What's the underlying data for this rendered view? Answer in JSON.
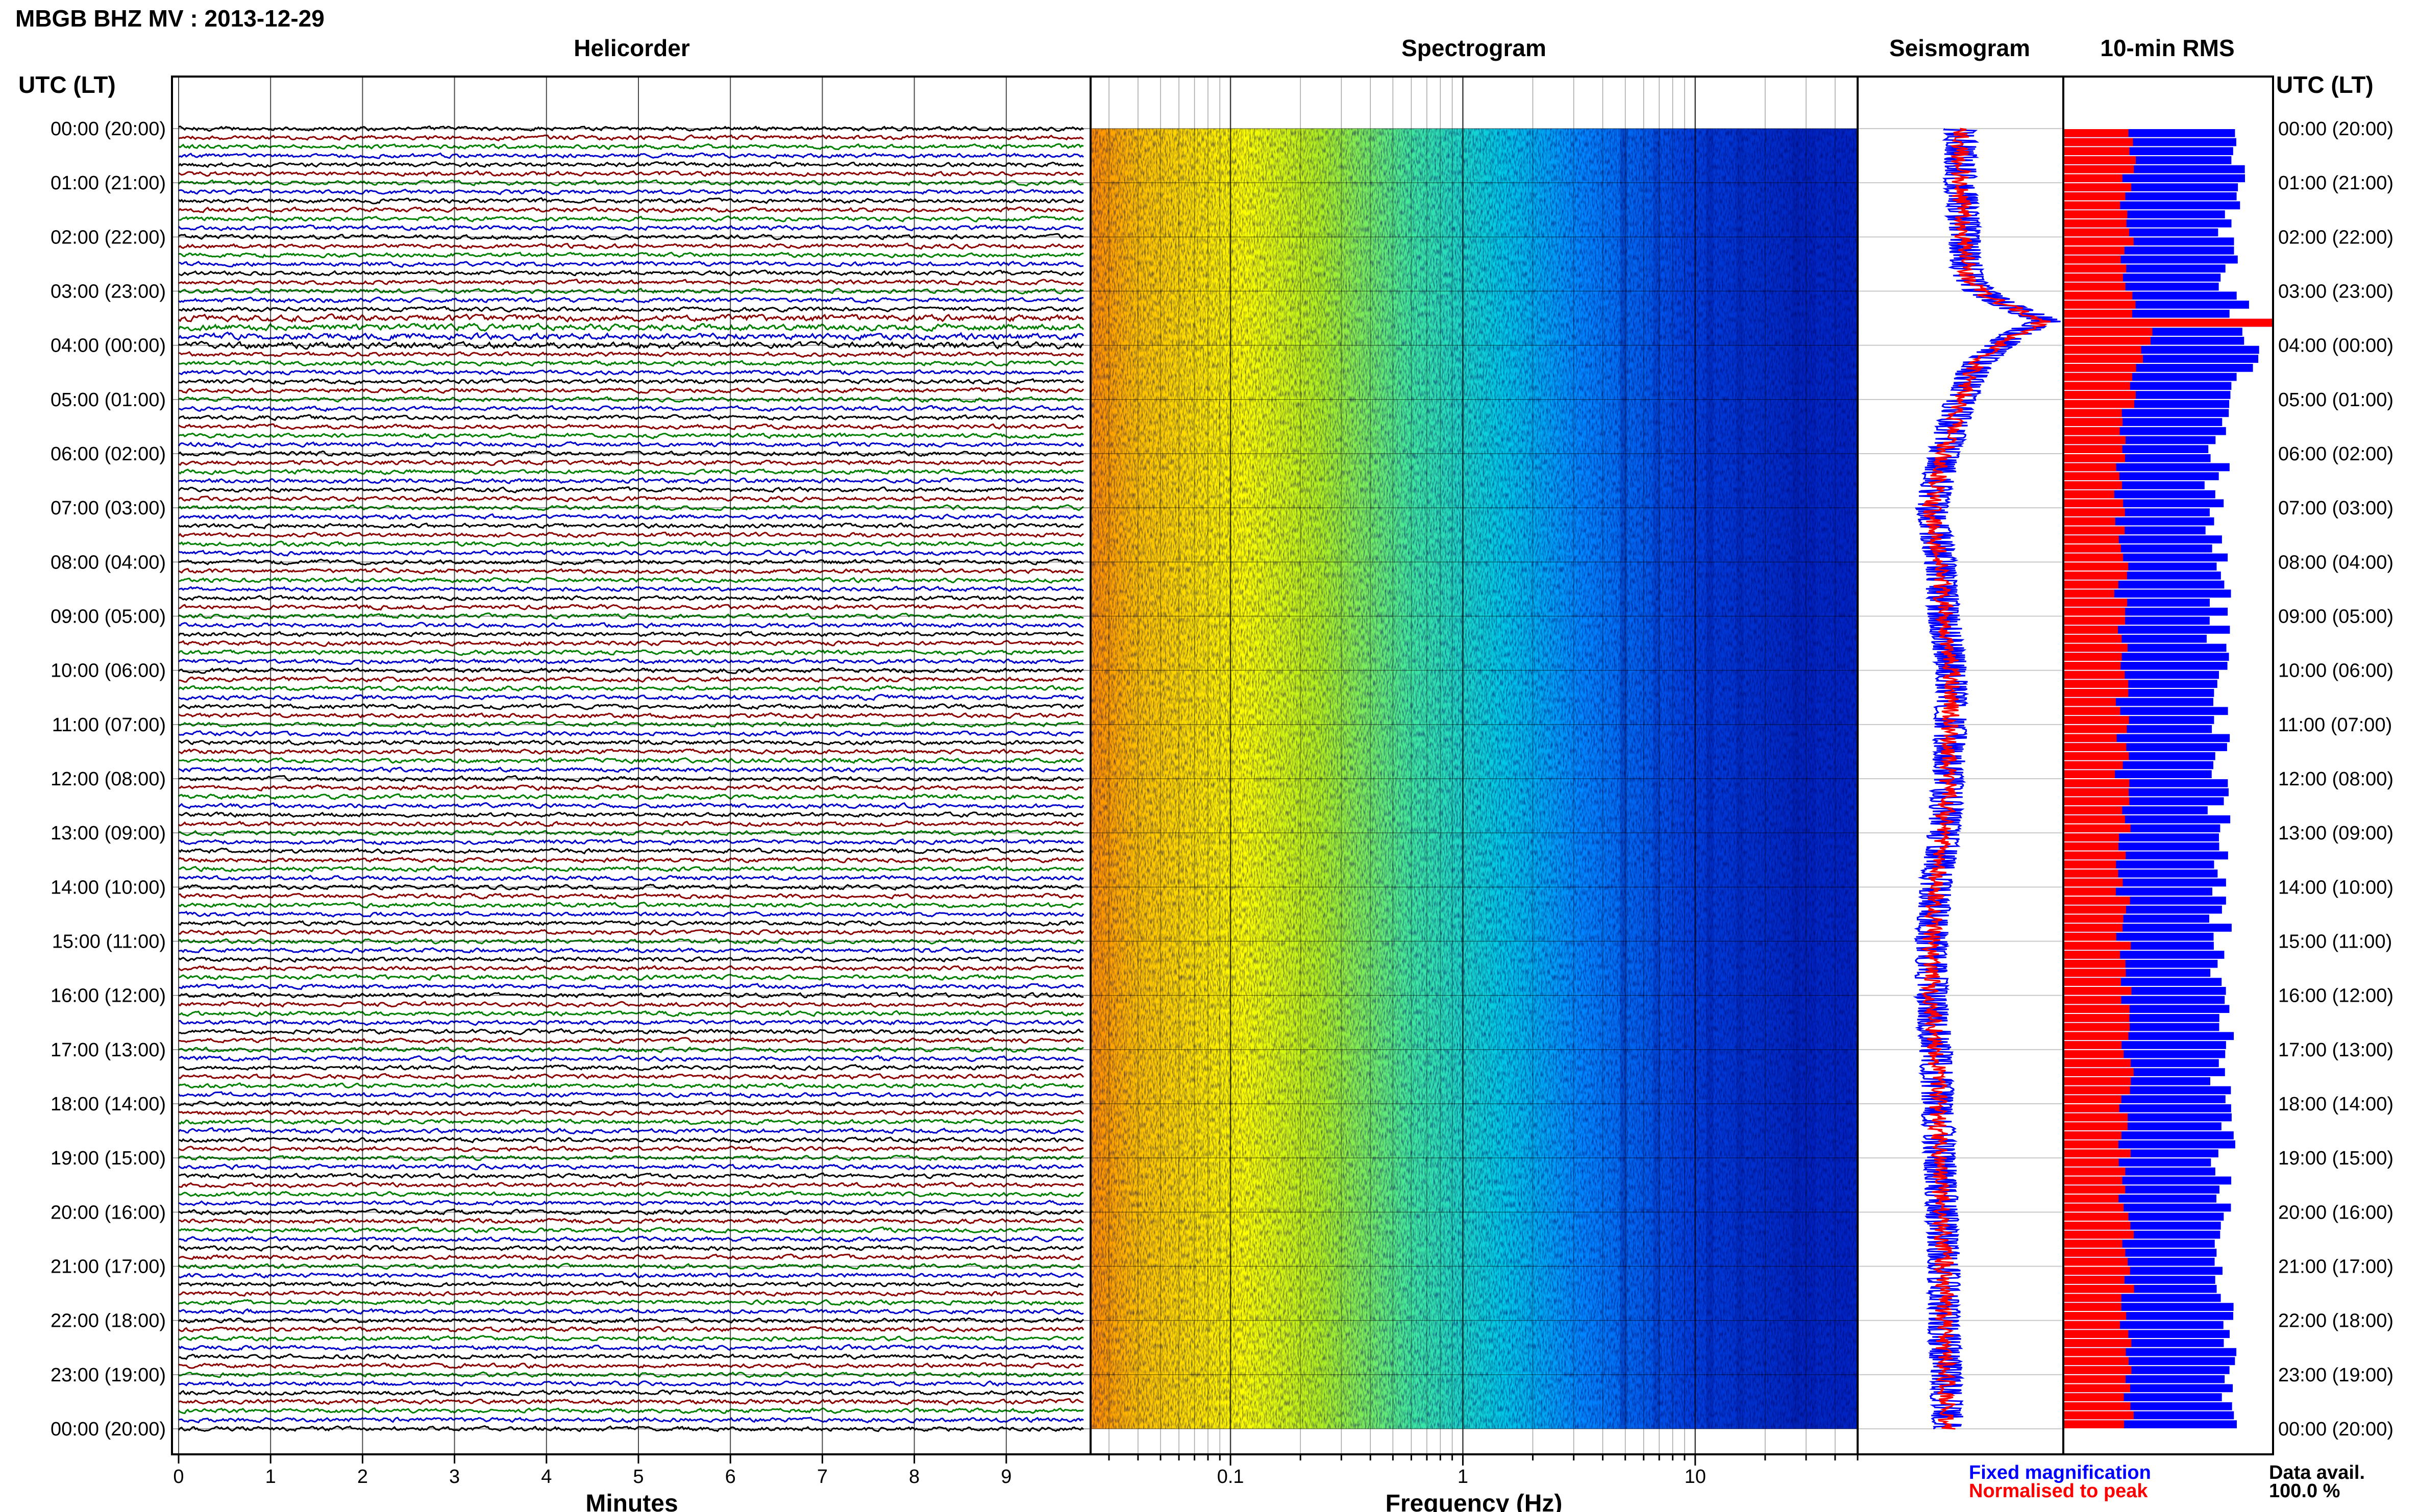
{
  "header": {
    "station_title": "MBGB BHZ MV : 2013-12-29"
  },
  "panels": {
    "helicorder": "Helicorder",
    "spectrogram": "Spectrogram",
    "seismogram": "Seismogram",
    "rms": "10-min RMS"
  },
  "time_axis": {
    "label": "UTC (LT)",
    "ticks": [
      "00:00 (20:00)",
      "01:00 (21:00)",
      "02:00 (22:00)",
      "03:00 (23:00)",
      "04:00 (00:00)",
      "05:00 (01:00)",
      "06:00 (02:00)",
      "07:00 (03:00)",
      "08:00 (04:00)",
      "09:00 (05:00)",
      "10:00 (06:00)",
      "11:00 (07:00)",
      "12:00 (08:00)",
      "13:00 (09:00)",
      "14:00 (10:00)",
      "15:00 (11:00)",
      "16:00 (12:00)",
      "17:00 (13:00)",
      "18:00 (14:00)",
      "19:00 (15:00)",
      "20:00 (16:00)",
      "21:00 (17:00)",
      "22:00 (18:00)",
      "23:00 (19:00)",
      "00:00 (20:00)"
    ]
  },
  "legend": {
    "fixed": "Fixed magnification",
    "normalised": "Normalised to peak",
    "fixed_color": "#0000ff",
    "normalised_color": "#ff0000"
  },
  "data_avail": {
    "label": "Data avail.",
    "value": "100.0 %"
  },
  "chart_data": [
    {
      "type": "line",
      "panel": "Helicorder",
      "xlabel": "Minutes",
      "xlim": [
        0,
        10
      ],
      "x_ticks": [
        "0",
        "1",
        "2",
        "3",
        "4",
        "5",
        "6",
        "7",
        "8",
        "9"
      ],
      "y_label": "UTC (LT)",
      "y_range_hours": [
        0,
        24
      ],
      "rows": 144,
      "trace_colors": [
        "#000000",
        "#8b0000",
        "#008000",
        "#0000cc"
      ]
    },
    {
      "type": "heatmap",
      "panel": "Spectrogram",
      "xlabel": "Frequency (Hz)",
      "x_scale": "log",
      "xlim": [
        0.025,
        50
      ],
      "x_ticks": [
        {
          "value": 0.1,
          "label": "0.1"
        },
        {
          "value": 1,
          "label": "1"
        },
        {
          "value": 10,
          "label": "10"
        }
      ],
      "y_range_hours": [
        0,
        24
      ],
      "colormap": [
        "#ff8c00",
        "#ffc000",
        "#ffff00",
        "#b0f020",
        "#40e8a0",
        "#00c8e8",
        "#0088ff",
        "#0040e0",
        "#0018b0"
      ]
    },
    {
      "type": "line",
      "panel": "Seismogram",
      "y_range_hours": [
        0,
        24
      ],
      "series": [
        {
          "name": "Fixed magnification",
          "color": "#0000ff"
        },
        {
          "name": "Normalised to peak",
          "color": "#ff0000"
        }
      ],
      "hourly_x": [
        0.5,
        0.5,
        0.52,
        0.54,
        0.62,
        0.5,
        0.42,
        0.36,
        0.4,
        0.42,
        0.46,
        0.45,
        0.44,
        0.42,
        0.38,
        0.36,
        0.36,
        0.38,
        0.39,
        0.4,
        0.41,
        0.42,
        0.42,
        0.43,
        0.44
      ],
      "peak": {
        "hour": 3.55,
        "x": 0.92
      }
    },
    {
      "type": "bar",
      "panel": "10-min RMS",
      "orientation": "horizontal",
      "y_range_hours": [
        0,
        24
      ],
      "bins": 144,
      "series": [
        {
          "name": "Fixed magnification",
          "color": "#0000ff"
        },
        {
          "name": "Normalised to peak",
          "color": "#ff0000"
        }
      ],
      "hourly_fixed": [
        0.8,
        0.84,
        0.78,
        0.8,
        0.92,
        0.78,
        0.74,
        0.72,
        0.74,
        0.74,
        0.74,
        0.74,
        0.74,
        0.75,
        0.75,
        0.75,
        0.76,
        0.76,
        0.76,
        0.76,
        0.76,
        0.76,
        0.77,
        0.77,
        0.77
      ],
      "hourly_normalised": [
        0.32,
        0.31,
        0.3,
        0.32,
        0.42,
        0.3,
        0.28,
        0.27,
        0.28,
        0.28,
        0.28,
        0.28,
        0.28,
        0.29,
        0.29,
        0.29,
        0.3,
        0.3,
        0.3,
        0.3,
        0.3,
        0.3,
        0.3,
        0.3,
        0.3
      ],
      "peak": {
        "hour": 3.55,
        "fixed": 1.0,
        "normalised": 1.0
      }
    }
  ]
}
